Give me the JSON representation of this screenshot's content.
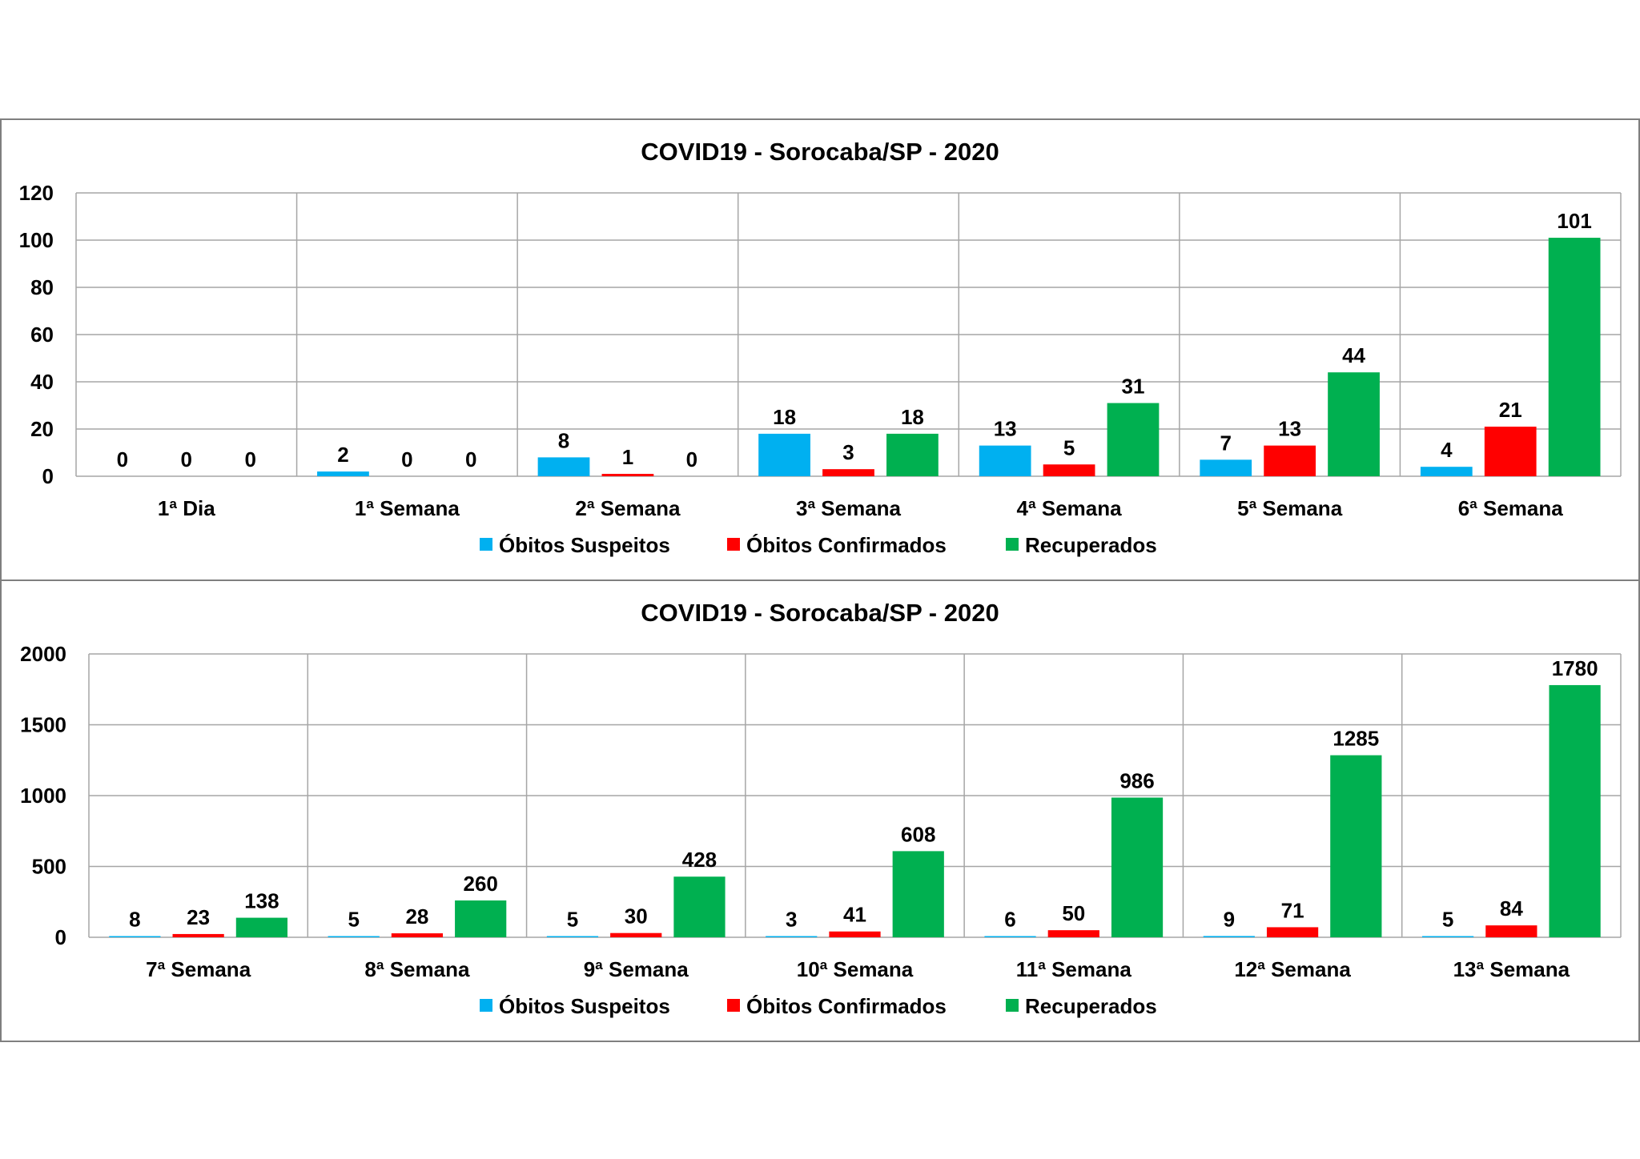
{
  "colors": {
    "suspeitos": "#00b0f0",
    "confirmados": "#ff0000",
    "recuperados": "#00b050",
    "grid": "#a6a6a6"
  },
  "chart_data": [
    {
      "type": "bar",
      "title": "COVID19 - Sorocaba/SP - 2020",
      "categories": [
        "1ª Dia",
        "1ª Semana",
        "2ª Semana",
        "3ª Semana",
        "4ª Semana",
        "5ª Semana",
        "6ª Semana"
      ],
      "series": [
        {
          "name": "Óbitos Suspeitos",
          "color": "#00b0f0",
          "values": [
            0,
            2,
            8,
            18,
            13,
            7,
            4
          ]
        },
        {
          "name": "Óbitos Confirmados",
          "color": "#ff0000",
          "values": [
            0,
            0,
            1,
            3,
            5,
            13,
            21
          ]
        },
        {
          "name": "Recuperados",
          "color": "#00b050",
          "values": [
            0,
            0,
            0,
            18,
            31,
            44,
            101
          ]
        }
      ],
      "ylim": [
        0,
        120
      ],
      "yticks": [
        0,
        20,
        40,
        60,
        80,
        100,
        120
      ],
      "grid": true,
      "legend": "bottom"
    },
    {
      "type": "bar",
      "title": "COVID19 - Sorocaba/SP - 2020",
      "categories": [
        "7ª Semana",
        "8ª Semana",
        "9ª Semana",
        "10ª Semana",
        "11ª Semana",
        "12ª Semana",
        "13ª Semana"
      ],
      "series": [
        {
          "name": "Óbitos Suspeitos",
          "color": "#00b0f0",
          "values": [
            8,
            5,
            5,
            3,
            6,
            9,
            5
          ]
        },
        {
          "name": "Óbitos Confirmados",
          "color": "#ff0000",
          "values": [
            23,
            28,
            30,
            41,
            50,
            71,
            84
          ]
        },
        {
          "name": "Recuperados",
          "color": "#00b050",
          "values": [
            138,
            260,
            428,
            608,
            986,
            1285,
            1780
          ]
        }
      ],
      "ylim": [
        0,
        2000
      ],
      "yticks": [
        0,
        500,
        1000,
        1500,
        2000
      ],
      "grid": true,
      "legend": "bottom"
    }
  ]
}
